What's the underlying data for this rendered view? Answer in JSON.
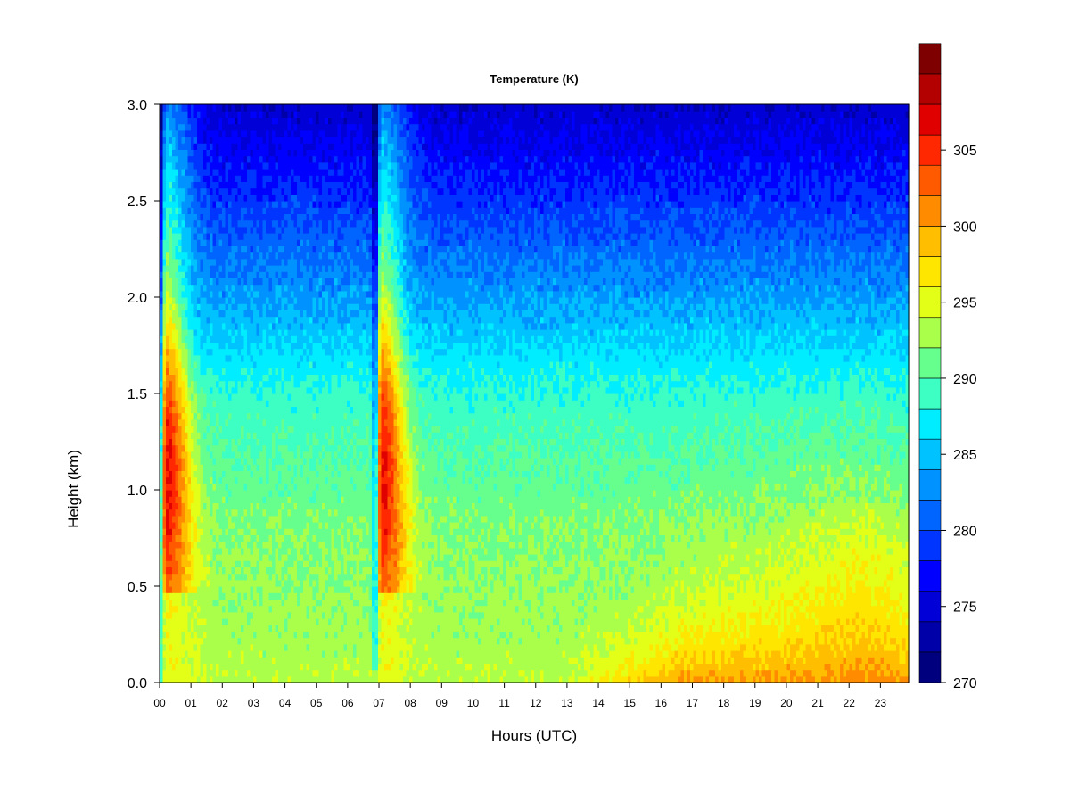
{
  "chart_data": {
    "type": "heatmap",
    "title": "Temperature (K)",
    "xlabel": "Hours (UTC)",
    "ylabel": "Height (km)",
    "x_ticks": [
      "00",
      "01",
      "02",
      "03",
      "04",
      "05",
      "06",
      "07",
      "08",
      "09",
      "10",
      "11",
      "12",
      "13",
      "14",
      "15",
      "16",
      "17",
      "18",
      "19",
      "20",
      "21",
      "22",
      "23"
    ],
    "xlim": [
      0,
      23.9
    ],
    "y_ticks": [
      "0.0",
      "0.5",
      "1.0",
      "1.5",
      "2.0",
      "2.5",
      "3.0"
    ],
    "ylim": [
      0,
      3.0
    ],
    "colorbar": {
      "range": [
        270,
        308
      ],
      "step": 2,
      "tick_values": [
        270,
        275,
        280,
        285,
        290,
        295,
        300,
        305
      ],
      "tick_labels": [
        "270",
        "275",
        "280",
        "285",
        "290",
        "295",
        "300",
        "305"
      ],
      "colors": [
        "#00007f",
        "#0000a8",
        "#0000d7",
        "#0000ff",
        "#0035ff",
        "#0064ff",
        "#0092ff",
        "#00c2ff",
        "#00ecff",
        "#3dffc4",
        "#66ff8e",
        "#aaff4a",
        "#e3ff17",
        "#ffe600",
        "#ffbe00",
        "#ff8c00",
        "#ff5a00",
        "#ff2800",
        "#e00000",
        "#b30000",
        "#7f0000"
      ]
    },
    "grid": false,
    "legend": "colorbar-right"
  }
}
